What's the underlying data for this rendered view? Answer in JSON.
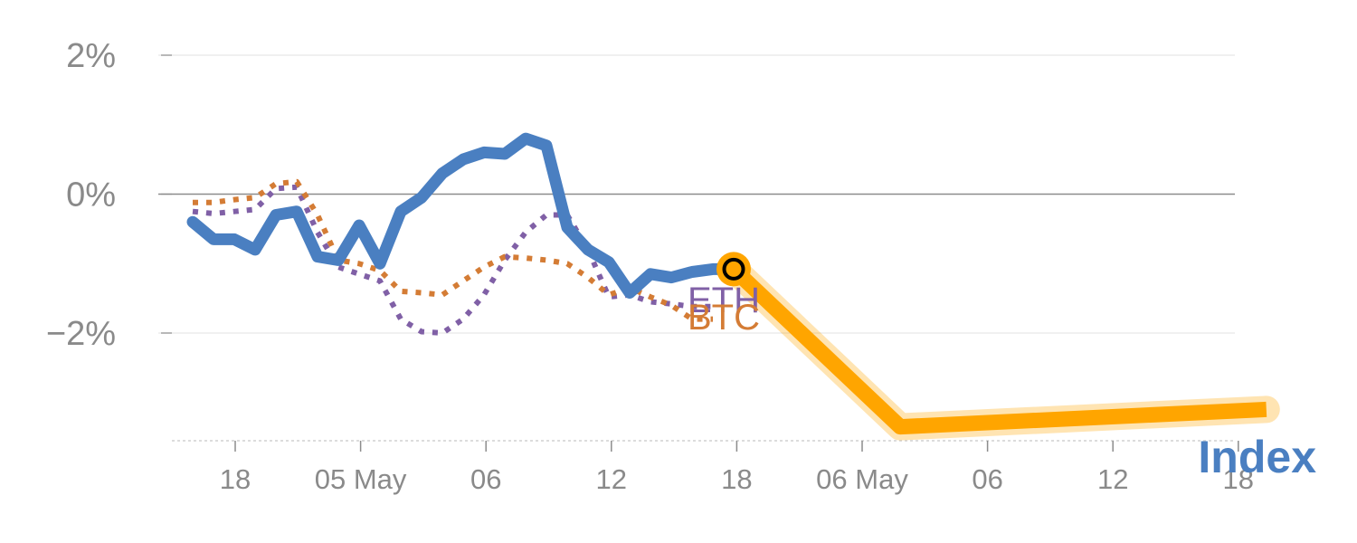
{
  "colors": {
    "index": "#4a7fc1",
    "btc": "#d47c35",
    "eth": "#8060a6",
    "projection": "#ffa500",
    "grid": "#e6e6e6",
    "zero_line": "#8c8c8c",
    "tick_text": "#8a8a8a"
  },
  "chart_data": {
    "type": "line",
    "y_unit": "%",
    "ylim": [
      -3.5,
      2.4
    ],
    "yticks": [
      2,
      0,
      -2
    ],
    "ytick_labels": [
      "2%",
      "0%",
      "−2%"
    ],
    "grid": true,
    "x_tick_labels": [
      "18",
      "05 May",
      "06",
      "12",
      "18",
      "06 May",
      "06",
      "12",
      "18"
    ],
    "x_range": [
      0,
      27
    ],
    "series": [
      {
        "key": "index",
        "name": "Index",
        "style": "solid",
        "x": [
          0,
          0.5,
          1,
          1.5,
          2,
          2.5,
          3,
          3.5,
          4,
          4.5,
          5,
          5.5,
          6,
          6.5,
          7,
          7.5,
          8,
          8.5,
          9,
          9.5,
          10,
          10.5,
          11,
          11.5,
          12,
          12.5,
          13
        ],
        "y": [
          -0.4,
          -0.65,
          -0.65,
          -0.8,
          -0.3,
          -0.25,
          -0.9,
          -0.95,
          -0.45,
          -1.0,
          -0.25,
          -0.05,
          0.3,
          0.5,
          0.6,
          0.58,
          0.8,
          0.7,
          -0.48,
          -0.8,
          -0.98,
          -1.42,
          -1.15,
          -1.2,
          -1.12,
          -1.08,
          -1.08
        ]
      },
      {
        "key": "btc",
        "name": "BTC",
        "style": "dotted",
        "x": [
          0,
          0.5,
          1,
          1.5,
          2,
          2.5,
          3,
          3.5,
          4,
          4.5,
          5,
          5.5,
          6,
          6.5,
          7,
          7.5,
          8,
          8.5,
          9,
          9.5,
          10,
          10.5,
          11,
          11.5,
          12,
          12.5
        ],
        "y": [
          -0.12,
          -0.12,
          -0.08,
          -0.05,
          0.15,
          0.18,
          -0.3,
          -0.95,
          -1.0,
          -1.1,
          -1.4,
          -1.42,
          -1.45,
          -1.25,
          -1.05,
          -0.9,
          -0.92,
          -0.95,
          -1.0,
          -1.2,
          -1.45,
          -1.35,
          -1.48,
          -1.6,
          -1.8,
          -1.8
        ]
      },
      {
        "key": "eth",
        "name": "ETH",
        "style": "dotted",
        "x": [
          0,
          0.5,
          1,
          1.5,
          2,
          2.5,
          3,
          3.5,
          4,
          4.5,
          5,
          5.5,
          6,
          6.5,
          7,
          7.5,
          8,
          8.5,
          9,
          9.5,
          10,
          10.5,
          11,
          11.5,
          12,
          12.5
        ],
        "y": [
          -0.25,
          -0.28,
          -0.25,
          -0.22,
          0.08,
          0.1,
          -0.55,
          -1.05,
          -1.15,
          -1.25,
          -1.8,
          -1.98,
          -2.0,
          -1.8,
          -1.45,
          -0.95,
          -0.55,
          -0.3,
          -0.3,
          -0.8,
          -1.48,
          -1.45,
          -1.55,
          -1.58,
          -1.62,
          -1.62
        ]
      },
      {
        "key": "projection",
        "style": "thick",
        "x": [
          13,
          17,
          25.8
        ],
        "y": [
          -1.08,
          -3.35,
          -3.1
        ]
      }
    ],
    "labels": {
      "eth": "ETH",
      "btc": "BTC",
      "index": "Index"
    }
  }
}
